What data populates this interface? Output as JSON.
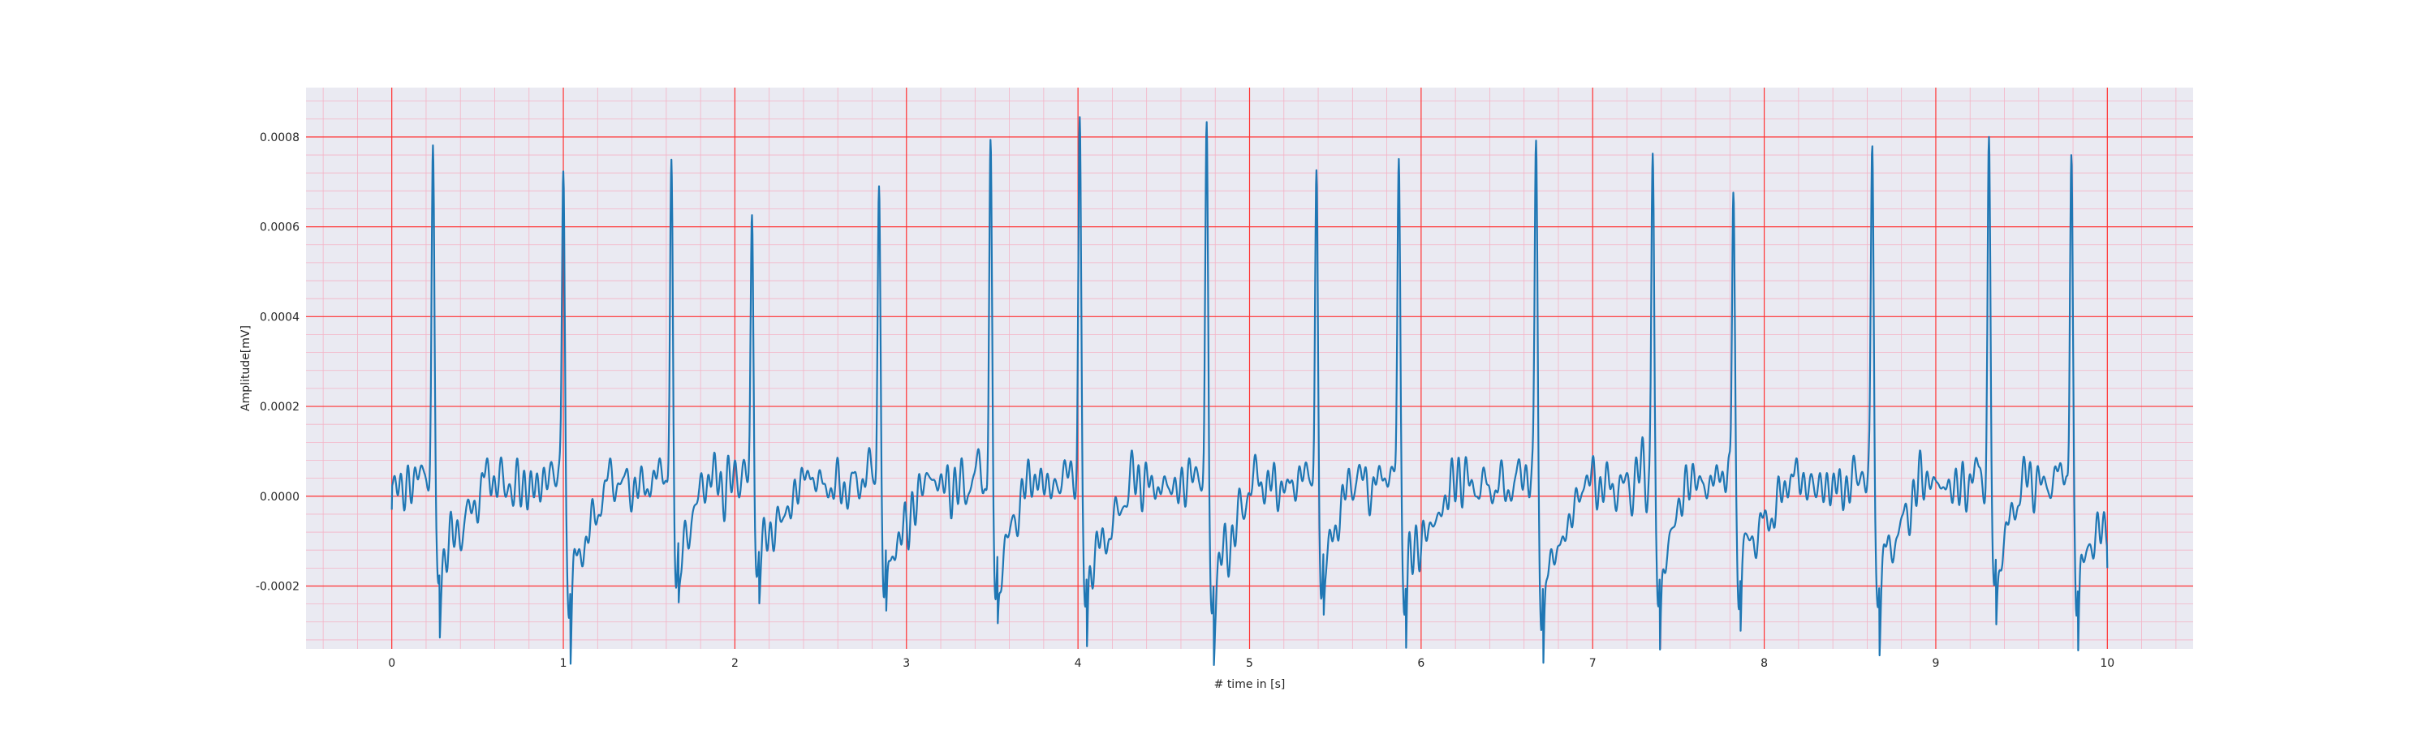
{
  "chart_data": {
    "type": "line",
    "title": "",
    "xlabel": "# time in [s]",
    "ylabel": "Amplitude[mV]",
    "xlim": [
      -0.5,
      10.5
    ],
    "ylim": [
      -0.00034,
      0.00091
    ],
    "xticks": [
      0,
      1,
      2,
      3,
      4,
      5,
      6,
      7,
      8,
      9,
      10
    ],
    "xtick_labels": [
      "0",
      "1",
      "2",
      "3",
      "4",
      "5",
      "6",
      "7",
      "8",
      "9",
      "10"
    ],
    "yticks": [
      -0.0002,
      0.0,
      0.0002,
      0.0004,
      0.0006,
      0.0008
    ],
    "ytick_labels": [
      "-0.0002",
      "0.0000",
      "0.0002",
      "0.0004",
      "0.0006",
      "0.0008"
    ],
    "grid": "major and minor",
    "series": [
      {
        "peaks": [
          {
            "t": 0.24,
            "r": 0.00079,
            "s": -0.00021
          },
          {
            "t": 1.0,
            "r": 0.00078,
            "s": -0.00026
          },
          {
            "t": 1.63,
            "r": 0.00075,
            "s": -0.00021
          },
          {
            "t": 2.1,
            "r": 0.00063,
            "s": -0.00018
          },
          {
            "t": 2.84,
            "r": 0.00073,
            "s": -0.00023
          },
          {
            "t": 3.49,
            "r": 0.00078,
            "s": -0.00024
          },
          {
            "t": 4.01,
            "r": 0.00086,
            "s": -0.00025
          },
          {
            "t": 4.75,
            "r": 0.00082,
            "s": -0.00027
          },
          {
            "t": 5.39,
            "r": 0.00072,
            "s": -0.00022
          },
          {
            "t": 5.87,
            "r": 0.00078,
            "s": -0.00023
          },
          {
            "t": 6.67,
            "r": 0.00082,
            "s": -0.00028
          },
          {
            "t": 7.35,
            "r": 0.00081,
            "s": -0.00026
          },
          {
            "t": 7.82,
            "r": 0.00071,
            "s": -0.0002
          },
          {
            "t": 8.63,
            "r": 0.0008,
            "s": -0.00024
          },
          {
            "t": 9.31,
            "r": 0.0008,
            "s": -0.00023
          },
          {
            "t": 9.79,
            "r": 0.00078,
            "s": -0.00023
          }
        ],
        "t_start": 0.0,
        "t_end": 10.0,
        "start_value": -3e-05,
        "end_value": -0.00016,
        "color": "#1f77b4"
      }
    ],
    "colors": {
      "background": "#eaeaf2",
      "major_grid": "#ff3333",
      "minor_grid": "#f4b3c6",
      "line": "#1f77b4"
    }
  }
}
